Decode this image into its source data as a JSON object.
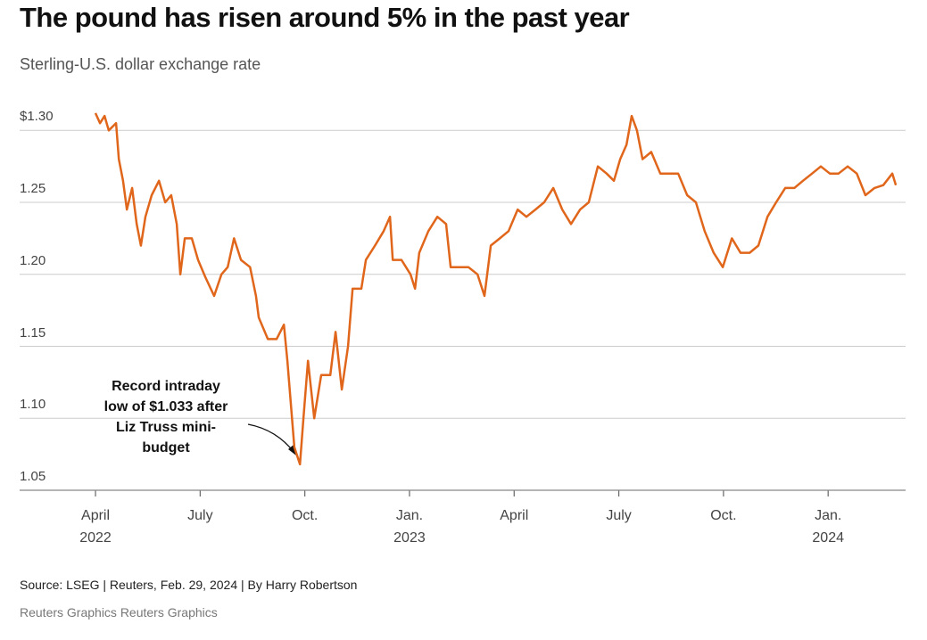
{
  "chart_data": {
    "type": "line",
    "title": "The pound has risen around 5% in the past year",
    "subtitle": "Sterling-U.S. dollar exchange rate",
    "source": "Source: LSEG | Reuters, Feb. 29, 2024 | By Harry Robertson",
    "credit": "Reuters Graphics Reuters Graphics",
    "annotation": "Record intraday\nlow of $1.033 after\nLiz Truss mini-\nbudget",
    "x": [
      0,
      0.13,
      0.26,
      0.38,
      0.59,
      0.67,
      0.79,
      0.9,
      1.05,
      1.18,
      1.3,
      1.43,
      1.61,
      1.82,
      2.0,
      2.17,
      2.33,
      2.43,
      2.56,
      2.76,
      2.94,
      3.15,
      3.4,
      3.61,
      3.79,
      3.97,
      4.17,
      4.43,
      4.6,
      4.68,
      4.94,
      5.19,
      5.4,
      5.5,
      5.7,
      5.86,
      5.96,
      6.09,
      6.27,
      6.47,
      6.73,
      6.88,
      7.06,
      7.24,
      7.37,
      7.62,
      7.75,
      8.01,
      8.26,
      8.44,
      8.52,
      8.77,
      9.03,
      9.16,
      9.28,
      9.54,
      9.8,
      10.05,
      10.18,
      10.43,
      10.69,
      10.95,
      11.15,
      11.33,
      11.59,
      11.84,
      12.1,
      12.35,
      12.61,
      12.86,
      13.12,
      13.38,
      13.63,
      13.89,
      14.14,
      14.4,
      14.65,
      14.86,
      15.04,
      15.22,
      15.37,
      15.52,
      15.68,
      15.93,
      16.19,
      16.45,
      16.7,
      16.96,
      17.21,
      17.46,
      17.72,
      17.98,
      18.24,
      18.49,
      18.75,
      19.0,
      19.26,
      19.51,
      19.77,
      20.03,
      20.28,
      20.54,
      20.79,
      21.05,
      21.3,
      21.56,
      21.82,
      22.07,
      22.33,
      22.58,
      22.84,
      22.94
    ],
    "series": [
      {
        "name": "GBP/USD",
        "color": "#e0661b",
        "values": [
          1.312,
          1.305,
          1.31,
          1.3,
          1.305,
          1.28,
          1.265,
          1.245,
          1.26,
          1.235,
          1.22,
          1.24,
          1.255,
          1.265,
          1.25,
          1.255,
          1.235,
          1.2,
          1.225,
          1.225,
          1.21,
          1.198,
          1.185,
          1.2,
          1.205,
          1.225,
          1.21,
          1.205,
          1.185,
          1.17,
          1.155,
          1.155,
          1.165,
          1.14,
          1.08,
          1.068,
          1.1,
          1.14,
          1.1,
          1.13,
          1.13,
          1.16,
          1.12,
          1.15,
          1.19,
          1.19,
          1.21,
          1.22,
          1.23,
          1.24,
          1.21,
          1.21,
          1.2,
          1.19,
          1.215,
          1.23,
          1.24,
          1.235,
          1.205,
          1.205,
          1.205,
          1.2,
          1.185,
          1.22,
          1.225,
          1.23,
          1.245,
          1.24,
          1.245,
          1.25,
          1.26,
          1.245,
          1.235,
          1.245,
          1.25,
          1.275,
          1.27,
          1.265,
          1.28,
          1.29,
          1.31,
          1.3,
          1.28,
          1.285,
          1.27,
          1.27,
          1.27,
          1.255,
          1.25,
          1.23,
          1.215,
          1.205,
          1.225,
          1.215,
          1.215,
          1.22,
          1.24,
          1.25,
          1.26,
          1.26,
          1.265,
          1.27,
          1.275,
          1.27,
          1.27,
          1.275,
          1.27,
          1.255,
          1.26,
          1.262,
          1.27,
          1.262
        ]
      }
    ],
    "xlim": [
      -0.18,
      23.22
    ],
    "xticks": [
      {
        "value": 0,
        "label": "April\n2022"
      },
      {
        "value": 3,
        "label": "July"
      },
      {
        "value": 6,
        "label": "Oct."
      },
      {
        "value": 9,
        "label": "Jan.\n2023"
      },
      {
        "value": 12,
        "label": "April"
      },
      {
        "value": 15,
        "label": "July"
      },
      {
        "value": 18,
        "label": "Oct."
      },
      {
        "value": 21,
        "label": "Jan.\n2024"
      }
    ],
    "ylim": [
      1.05,
      1.32
    ],
    "yticks": [
      {
        "value": 1.05,
        "label": "1.05"
      },
      {
        "value": 1.1,
        "label": "1.10"
      },
      {
        "value": 1.15,
        "label": "1.15"
      },
      {
        "value": 1.2,
        "label": "1.20"
      },
      {
        "value": 1.25,
        "label": "1.25"
      },
      {
        "value": 1.3,
        "label": "$1.30"
      }
    ],
    "grid": true
  }
}
